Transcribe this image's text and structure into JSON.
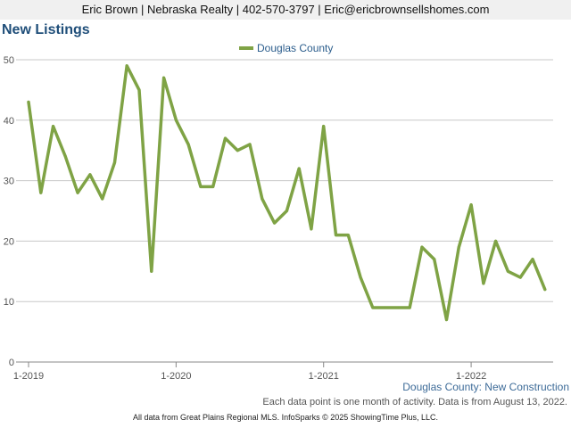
{
  "header": {
    "contact": "Eric Brown | Nebraska Realty | 402-570-3797 | Eric@ericbrownsellshomes.com"
  },
  "chart_data": {
    "type": "line",
    "title": "New Listings",
    "subtitle": "Douglas County: New Construction",
    "note": "Each data point is one month of activity. Data is from August 13, 2022.",
    "legend_position": "top-center",
    "grid": true,
    "ylim": [
      0,
      50
    ],
    "yticks": [
      0,
      10,
      20,
      30,
      40,
      50
    ],
    "xticks": [
      "1-2019",
      "1-2020",
      "1-2021",
      "1-2022"
    ],
    "x": [
      "2019-01",
      "2019-02",
      "2019-03",
      "2019-04",
      "2019-05",
      "2019-06",
      "2019-07",
      "2019-08",
      "2019-09",
      "2019-10",
      "2019-11",
      "2019-12",
      "2020-01",
      "2020-02",
      "2020-03",
      "2020-04",
      "2020-05",
      "2020-06",
      "2020-07",
      "2020-08",
      "2020-09",
      "2020-10",
      "2020-11",
      "2020-12",
      "2021-01",
      "2021-02",
      "2021-03",
      "2021-04",
      "2021-05",
      "2021-06",
      "2021-07",
      "2021-08",
      "2021-09",
      "2021-10",
      "2021-11",
      "2021-12",
      "2022-01",
      "2022-02",
      "2022-03",
      "2022-04",
      "2022-05",
      "2022-06",
      "2022-07"
    ],
    "series": [
      {
        "name": "Douglas County",
        "color": "#7fa345",
        "values": [
          43,
          28,
          39,
          34,
          28,
          31,
          27,
          33,
          49,
          45,
          15,
          47,
          40,
          36,
          29,
          29,
          37,
          35,
          36,
          27,
          23,
          25,
          32,
          22,
          39,
          21,
          21,
          14,
          9,
          9,
          9,
          9,
          19,
          17,
          7,
          19,
          26,
          13,
          20,
          15,
          14,
          17,
          12
        ]
      }
    ]
  },
  "footer": {
    "source": "All data from Great Plains Regional MLS. InfoSparks © 2025 ShowingTime Plus, LLC."
  }
}
